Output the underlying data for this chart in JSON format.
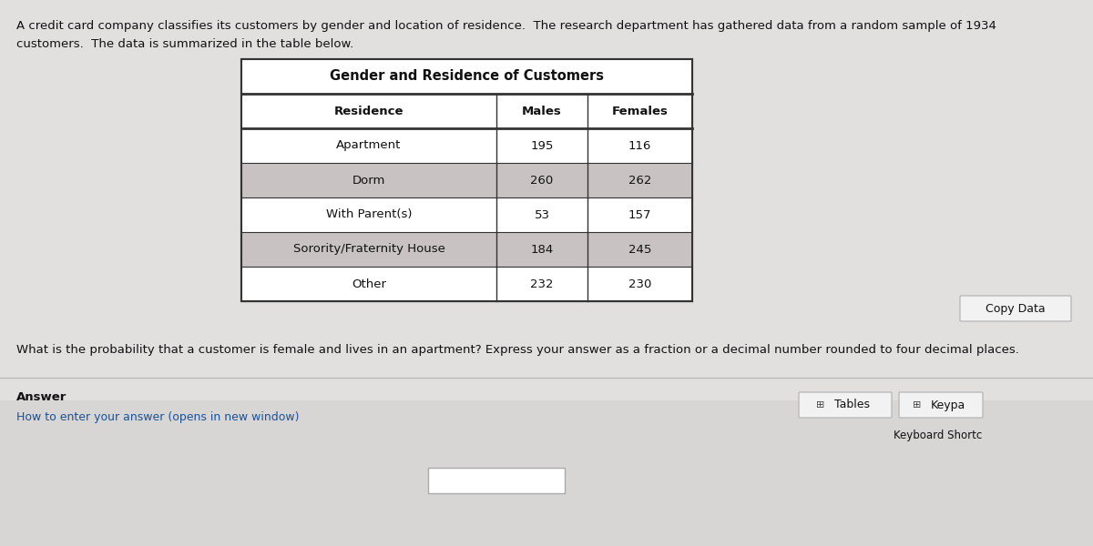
{
  "title_text": "Gender and Residence of Customers",
  "col_headers": [
    "Residence",
    "Males",
    "Females"
  ],
  "rows": [
    [
      "Apartment",
      "195",
      "116"
    ],
    [
      "Dorm",
      "260",
      "262"
    ],
    [
      "With Parent(s)",
      "53",
      "157"
    ],
    [
      "Sorority/Fraternity House",
      "184",
      "245"
    ],
    [
      "Other",
      "232",
      "230"
    ]
  ],
  "intro_line1": "A credit card company classifies its customers by gender and location of residence.  The research department has gathered data from a random sample of 1934",
  "intro_line2": "customers.  The data is summarized in the table below.",
  "question_text": "What is the probability that a customer is female and lives in an apartment? Express your answer as a fraction or a decimal number rounded to four decimal places.",
  "answer_label": "Answer",
  "answer_subtext": "How to enter your answer (opens in new window)",
  "copy_data_text": "Copy Data",
  "tables_text": "Tables",
  "keypad_text": "Keypa",
  "keyboard_text": "Keyboard Shortc",
  "bg_color_top": "#e8e6e6",
  "bg_color_bottom": "#d8d5d5",
  "table_bg": "#ffffff",
  "table_border": "#333333",
  "row_bg_odd": "#c9c2c2",
  "row_bg_even": "#ffffff",
  "button_bg": "#f2f2f2",
  "button_border": "#bbbbbb",
  "input_box_color": "#ffffff",
  "input_box_border": "#aaaaaa",
  "sep_line_color": "#bbbbbb",
  "answer_subtext_color": "#1a5299",
  "title_fontsize": 10.5,
  "header_fontsize": 9.5,
  "cell_fontsize": 9.5,
  "intro_fontsize": 9.5,
  "question_fontsize": 9.5,
  "answer_fontsize": 9.5
}
